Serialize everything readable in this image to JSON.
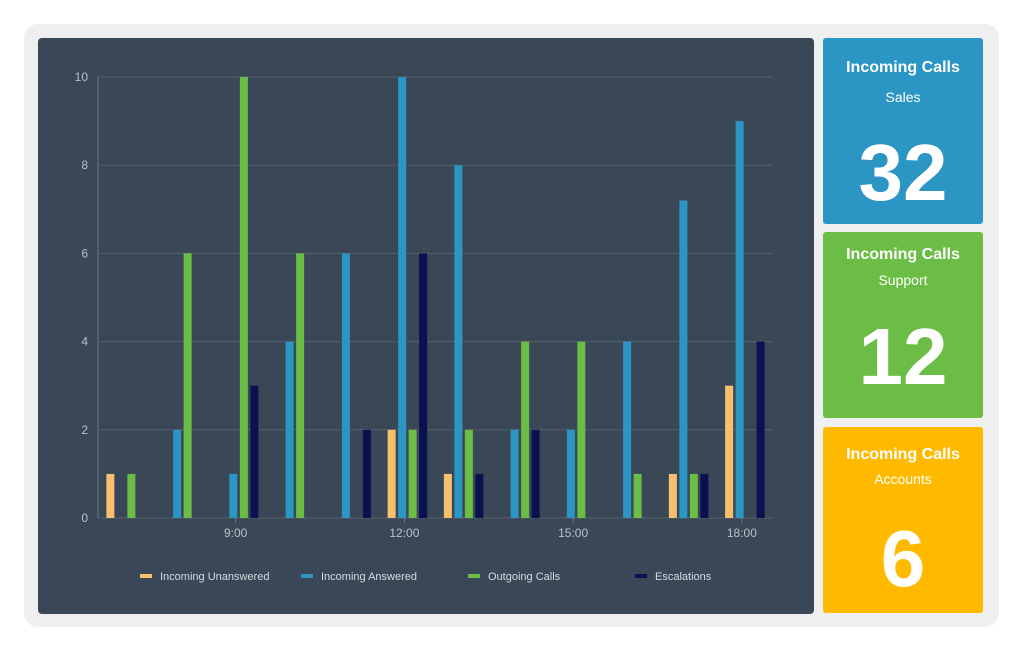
{
  "chart_data": {
    "type": "bar",
    "y_ticks": [
      "0",
      "2",
      "4",
      "6",
      "8",
      "10"
    ],
    "ylim": [
      0,
      10
    ],
    "x_tick_labels": [
      {
        "label": "9:00",
        "slot": 2
      },
      {
        "label": "12:00",
        "slot": 5
      },
      {
        "label": "15:00",
        "slot": 8
      },
      {
        "label": "18:00",
        "slot": 11
      }
    ],
    "slots": 12,
    "grid": true,
    "legend_position": "bottom",
    "series": [
      {
        "name": "Incoming Unanswered",
        "color": "#f7bf6e",
        "values": [
          1,
          0,
          0,
          0,
          0,
          2,
          1,
          0,
          0,
          0,
          1,
          3
        ]
      },
      {
        "name": "Incoming Answered",
        "color": "#2b96c4",
        "values": [
          0,
          2,
          1,
          4,
          6,
          10,
          8,
          2,
          2,
          4,
          7.2,
          9
        ]
      },
      {
        "name": "Outgoing Calls",
        "color": "#6cbd45",
        "values": [
          1,
          6,
          10,
          6,
          0,
          2,
          2,
          4,
          4,
          1,
          1,
          0
        ]
      },
      {
        "name": "Escalations",
        "color": "#0b1150",
        "values": [
          0,
          0,
          3,
          0,
          2,
          6,
          1,
          2,
          0,
          0,
          1,
          4
        ]
      }
    ]
  },
  "cards": [
    {
      "title": "Incoming Calls",
      "subtitle": "Sales",
      "value": "32",
      "color": "#2b96c4"
    },
    {
      "title": "Incoming Calls",
      "subtitle": "Support",
      "value": "12",
      "color": "#6cbd45"
    },
    {
      "title": "Incoming Calls",
      "subtitle": "Accounts",
      "value": "6",
      "color": "#ffba00"
    }
  ]
}
